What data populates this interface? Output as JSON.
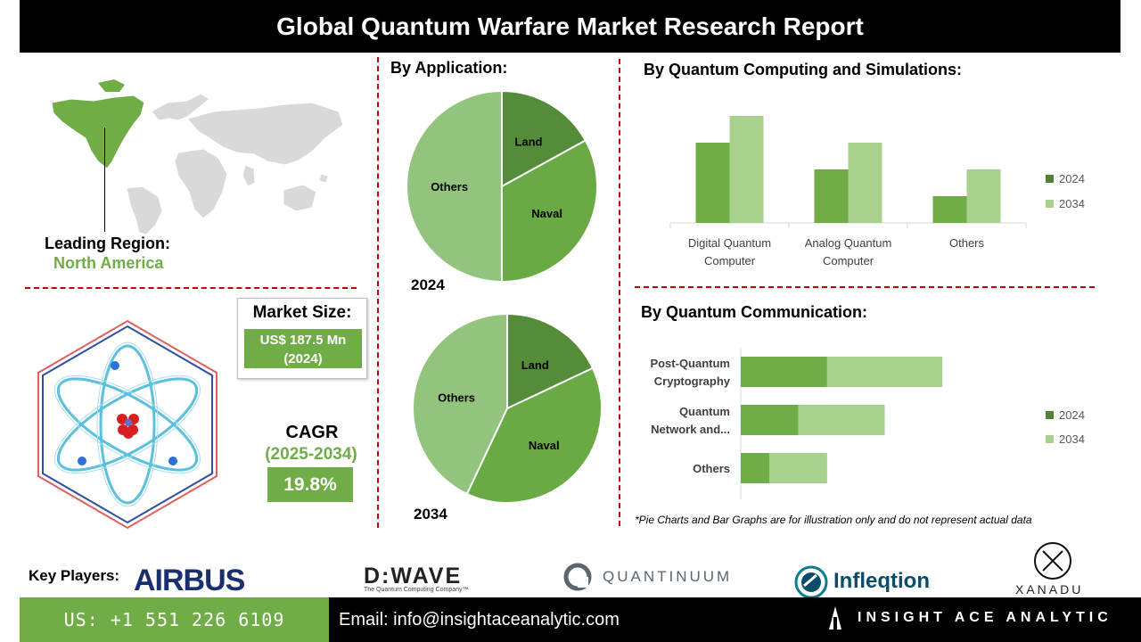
{
  "header": {
    "title": "Global Quantum Warfare Market Research Report"
  },
  "region": {
    "label": "Leading Region:",
    "value": "North America"
  },
  "market_size": {
    "title": "Market Size:",
    "value_line1": "US$ 187.5 Mn",
    "value_line2": "(2024)"
  },
  "cagr": {
    "title": "CAGR",
    "period": "(2025-2034)",
    "value": "19.8%"
  },
  "sections": {
    "application": "By  Application:",
    "computing": "By Quantum Computing and Simulations:",
    "communication": "By Quantum Communication:"
  },
  "colors": {
    "dark_green": "#548235",
    "mid_green": "#70ad47",
    "light_green": "#a9d18e",
    "pie_others": "#93c47d",
    "pie_naval": "#6aaa45",
    "pie_land": "#548c3a",
    "dash_red": "#c00000"
  },
  "chart_data": [
    {
      "type": "pie",
      "title": "2024",
      "labels": [
        "Land",
        "Naval",
        "Others"
      ],
      "values": [
        17,
        33,
        50
      ]
    },
    {
      "type": "pie",
      "title": "2034",
      "labels": [
        "Land",
        "Naval",
        "Others"
      ],
      "values": [
        18,
        39,
        43
      ]
    },
    {
      "type": "bar",
      "title": "By Quantum Computing and Simulations:",
      "categories": [
        "Digital Quantum Computer",
        "Analog Quantum Computer",
        "Others"
      ],
      "category_lines": [
        [
          "Digital Quantum",
          "Computer"
        ],
        [
          "Analog Quantum",
          "Computer"
        ],
        [
          "Others"
        ]
      ],
      "series": [
        {
          "name": "2024",
          "values": [
            3,
            2,
            1
          ]
        },
        {
          "name": "2034",
          "values": [
            4,
            3,
            2
          ]
        }
      ],
      "ylim": [
        0,
        4
      ]
    },
    {
      "type": "bar",
      "orientation": "horizontal",
      "stacked": true,
      "title": "By Quantum Communication:",
      "categories": [
        "Post-Quantum Cryptography",
        "Quantum Network and...",
        "Others"
      ],
      "category_lines": [
        [
          "Post-Quantum",
          "Cryptography"
        ],
        [
          "Quantum",
          "Network and..."
        ],
        [
          "Others"
        ]
      ],
      "series": [
        {
          "name": "2024",
          "values": [
            3,
            2,
            1
          ]
        },
        {
          "name": "2034",
          "values": [
            4,
            3,
            2
          ]
        }
      ],
      "xlim": [
        0,
        7
      ]
    }
  ],
  "note": "*Pie Charts and Bar Graphs are for illustration only and do not represent actual data",
  "key_players": {
    "label": "Key Players:",
    "logos": [
      {
        "name": "AIRBUS"
      },
      {
        "name": "D:WAVE",
        "tagline": "The Quantum Computing Company™"
      },
      {
        "name": "QUANTINUUM"
      },
      {
        "name": "Infleqtion"
      },
      {
        "name": "XANADU"
      }
    ]
  },
  "footer": {
    "phone": "US: +1 551 226 6109",
    "email": "Email: info@insightaceanalytic.com",
    "brand": "INSIGHT ACE ANALYTIC"
  }
}
